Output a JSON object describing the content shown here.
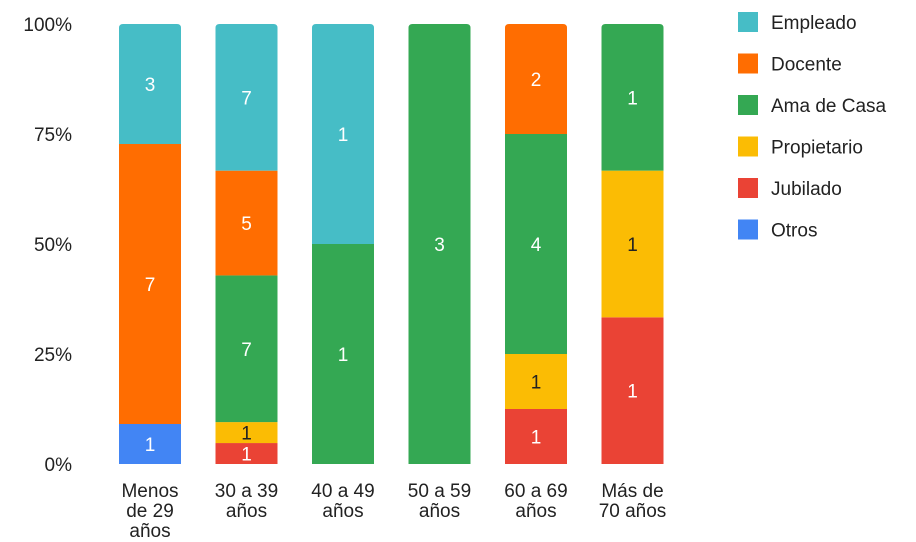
{
  "chart_data": {
    "type": "bar",
    "stacked": "percent",
    "categories": [
      [
        "Menos",
        "de 29",
        "años"
      ],
      [
        "30 a 39",
        "años"
      ],
      [
        "40 a 49",
        "años"
      ],
      [
        "50 a 59",
        "años"
      ],
      [
        "60 a 69",
        "años"
      ],
      [
        "Más de",
        "70 años"
      ]
    ],
    "series": [
      {
        "name": "Otros",
        "color": "#4285f4",
        "values": [
          1,
          0,
          0,
          0,
          0,
          0
        ]
      },
      {
        "name": "Jubilado",
        "color": "#ea4335",
        "values": [
          0,
          1,
          0,
          0,
          1,
          1
        ]
      },
      {
        "name": "Propietario",
        "color": "#fbbc04",
        "values": [
          0,
          1,
          0,
          0,
          1,
          1
        ]
      },
      {
        "name": "Ama de Casa",
        "color": "#34a853",
        "values": [
          0,
          7,
          1,
          3,
          4,
          1
        ]
      },
      {
        "name": "Docente",
        "color": "#ff6d01",
        "values": [
          7,
          5,
          0,
          0,
          2,
          0
        ]
      },
      {
        "name": "Empleado",
        "color": "#46bdc6",
        "values": [
          3,
          7,
          1,
          0,
          0,
          0
        ]
      }
    ],
    "legend_order": [
      "Empleado",
      "Docente",
      "Ama de Casa",
      "Propietario",
      "Jubilado",
      "Otros"
    ],
    "y_ticks": [
      "0%",
      "25%",
      "50%",
      "75%",
      "100%"
    ],
    "ylim": [
      0,
      100
    ],
    "legend_position": "right",
    "grid": false
  }
}
